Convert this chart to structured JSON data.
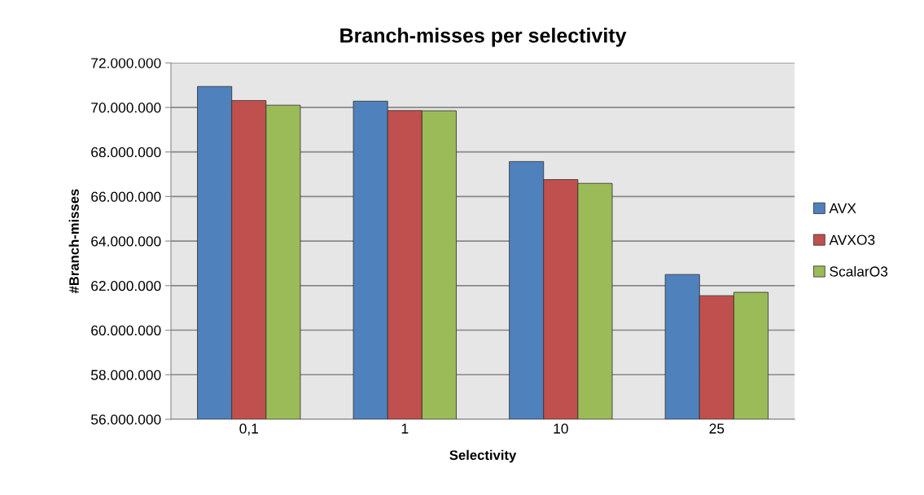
{
  "chart_data": {
    "type": "bar",
    "title": "Branch-misses per selectivity",
    "xlabel": "Selectivity",
    "ylabel": "#Branch-misses",
    "categories": [
      "0,1",
      "1",
      "10",
      "25"
    ],
    "series": [
      {
        "name": "AVX",
        "color": "#4f81bd",
        "values": [
          70940000,
          70280000,
          67570000,
          62500000
        ]
      },
      {
        "name": "AVXO3",
        "color": "#c0504d",
        "values": [
          70310000,
          69860000,
          66760000,
          61550000
        ]
      },
      {
        "name": "ScalarO3",
        "color": "#9bbb59",
        "values": [
          70100000,
          69850000,
          66590000,
          61700000
        ]
      }
    ],
    "ylim": [
      56000000,
      72000000
    ],
    "yticks": [
      {
        "value": 56000000,
        "label": "56.000.000"
      },
      {
        "value": 58000000,
        "label": "58.000.000"
      },
      {
        "value": 60000000,
        "label": "60.000.000"
      },
      {
        "value": 62000000,
        "label": "62.000.000"
      },
      {
        "value": 64000000,
        "label": "64.000.000"
      },
      {
        "value": 66000000,
        "label": "66.000.000"
      },
      {
        "value": 68000000,
        "label": "68.000.000"
      },
      {
        "value": 70000000,
        "label": "70.000.000"
      },
      {
        "value": 72000000,
        "label": "72.000.000"
      }
    ],
    "grid": "y",
    "legend": "right"
  }
}
